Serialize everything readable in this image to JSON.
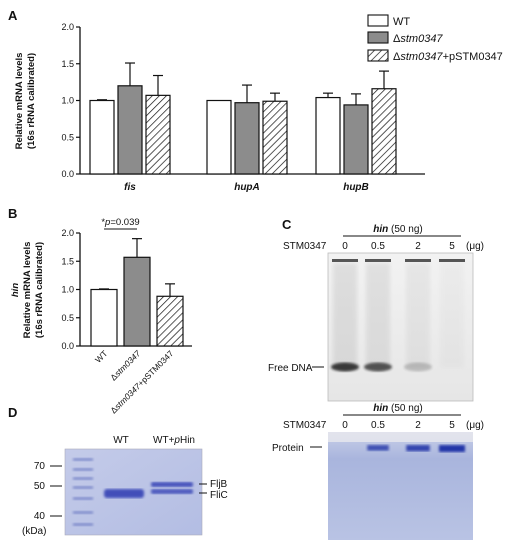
{
  "panels": {
    "A": "A",
    "B": "B",
    "C": "C",
    "D": "D"
  },
  "chart_data": [
    {
      "type": "bar",
      "panel": "A",
      "ylabel_lines": [
        "Relative mRNA levels",
        "(16s rRNA calibrated)"
      ],
      "ylim": [
        0,
        2.0
      ],
      "yticks": [
        "0.0",
        "0.5",
        "1.0",
        "1.5",
        "2.0"
      ],
      "categories": [
        "fis",
        "hupA",
        "hupB"
      ],
      "legend": {
        "placement": "top-right",
        "entries": [
          {
            "plain": "WT",
            "pattern": "white"
          },
          {
            "plain": "Δ",
            "italic": "stm0347",
            "tail": "",
            "pattern": "gray"
          },
          {
            "plain": "Δ",
            "italic": "stm0347",
            "tail": "+pSTM0347",
            "pattern": "hatch"
          }
        ]
      },
      "series": [
        {
          "pattern": "white",
          "values": [
            1.0,
            1.0,
            1.04
          ],
          "errors": [
            0.01,
            0.0,
            0.06
          ]
        },
        {
          "pattern": "gray",
          "values": [
            1.2,
            0.97,
            0.94
          ],
          "errors": [
            0.31,
            0.24,
            0.15
          ]
        },
        {
          "pattern": "hatch",
          "values": [
            1.07,
            0.99,
            1.16
          ],
          "errors": [
            0.27,
            0.11,
            0.24
          ]
        }
      ]
    },
    {
      "type": "bar",
      "panel": "B",
      "ylabel_italic": "hin",
      "ylabel_lines": [
        "Relative mRNA levels",
        "(16s rRNA calibrated)"
      ],
      "ylim": [
        0,
        2.0
      ],
      "yticks": [
        "0.0",
        "0.5",
        "1.0",
        "1.5",
        "2.0"
      ],
      "categories": [
        "WT",
        "Δstm0347",
        "Δstm0347+pSTM0347"
      ],
      "series": [
        {
          "values": [
            1.0,
            1.57,
            0.88
          ],
          "errors": [
            0.01,
            0.33,
            0.22
          ],
          "patterns": [
            "white",
            "gray",
            "hatch"
          ]
        }
      ],
      "annotation": "*p=0.039"
    }
  ],
  "panel_c": {
    "top": {
      "header": "hin (50 ng)",
      "row_label": "STM0347",
      "lanes": [
        "0",
        "0.5",
        "2",
        "5"
      ],
      "unit": "(μg)",
      "band_label": "Free DNA",
      "free_dna_intensity": [
        1.0,
        0.85,
        0.25,
        0.0
      ]
    },
    "bottom": {
      "header": "hin (50 ng)",
      "row_label": "STM0347",
      "lanes": [
        "0",
        "0.5",
        "2",
        "5"
      ],
      "unit": "(μg)",
      "band_label": "Protein",
      "protein_intensity": [
        0.0,
        0.55,
        0.75,
        1.0
      ]
    }
  },
  "panel_d": {
    "lanes": [
      "WT",
      "WT+pHin"
    ],
    "markers": [
      "70",
      "50",
      "40"
    ],
    "unit": "(kDa)",
    "band_labels": [
      "FljB",
      "FliC"
    ]
  },
  "colors": {
    "bar_gray": "#8c8c8c",
    "gel_blue": "#aab6dd",
    "gel_band": "#2235a8"
  }
}
